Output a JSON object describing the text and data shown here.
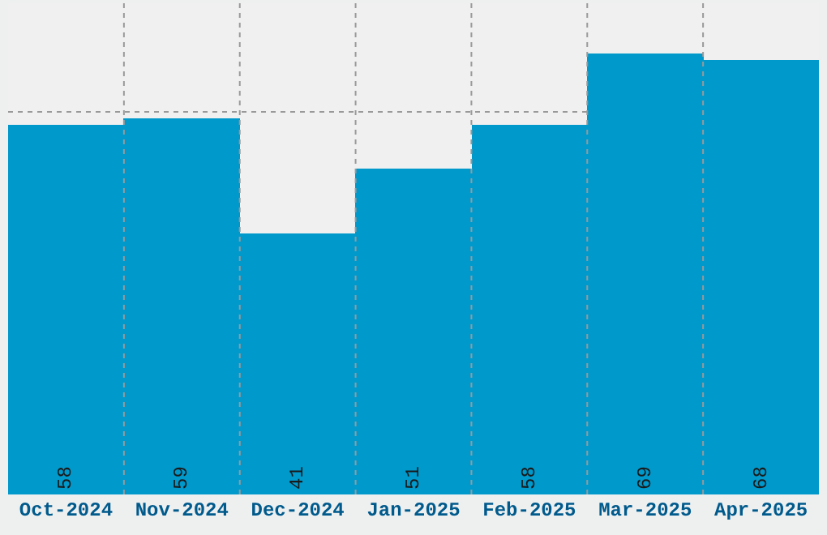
{
  "chart_data": {
    "type": "bar",
    "categories": [
      "Oct-2024",
      "Nov-2024",
      "Dec-2024",
      "Jan-2025",
      "Feb-2025",
      "Mar-2025",
      "Apr-2025"
    ],
    "values": [
      58,
      59,
      41,
      51,
      58,
      69,
      68
    ],
    "color": "#0099cc",
    "ylim": [
      0,
      77
    ],
    "tick_labels": "x",
    "grid": true,
    "data_labels": true
  }
}
